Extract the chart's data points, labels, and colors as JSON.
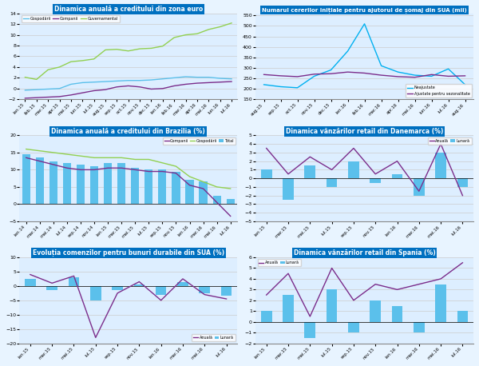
{
  "panel1": {
    "title": "Dinamica anuală a creditului din zona euro",
    "xlabels": [
      "ian.15",
      "feb.15",
      "mar.15",
      "apr.15",
      "mai.15",
      "iun.15",
      "iul.15",
      "aug.15",
      "sep.15",
      "oct.15",
      "nov.15",
      "dec.15",
      "ian.16",
      "feb.16",
      "mar.16",
      "apr.16",
      "mai.16",
      "iun.16",
      "iul.16"
    ],
    "gospodariii": [
      -0.3,
      -0.2,
      -0.1,
      0.0,
      0.8,
      1.1,
      1.2,
      1.3,
      1.4,
      1.5,
      1.5,
      1.6,
      1.8,
      2.0,
      2.2,
      2.1,
      2.1,
      1.9,
      1.8
    ],
    "companii": [
      -1.8,
      -1.7,
      -1.6,
      -1.5,
      -1.2,
      -0.8,
      -0.4,
      -0.2,
      0.3,
      0.5,
      0.3,
      -0.1,
      0.0,
      0.5,
      0.8,
      1.0,
      1.1,
      1.2,
      1.3
    ],
    "guvernamental": [
      2.1,
      1.7,
      3.5,
      4.0,
      5.0,
      5.2,
      5.5,
      7.2,
      7.3,
      7.0,
      7.4,
      7.5,
      7.9,
      9.5,
      10.0,
      10.2,
      11.0,
      11.5,
      12.2
    ],
    "ylim": [
      -2,
      14
    ],
    "yticks": [
      -2,
      0,
      2,
      4,
      6,
      8,
      10,
      12,
      14
    ]
  },
  "panel2": {
    "title": "Numarul cererilor inițiale pentru ajutorul de șomaj din SUA (mii)",
    "xlabels": [
      "aug.15",
      "sep.15",
      "oct.15",
      "nov.15",
      "dec.15",
      "ian.16",
      "feb.16",
      "mar.16",
      "apr.16",
      "mai.16",
      "iun.16",
      "iul.16",
      "aug.16"
    ],
    "neajustate": [
      220,
      210,
      205,
      260,
      290,
      380,
      510,
      310,
      280,
      265,
      260,
      295,
      220
    ],
    "ajustate": [
      268,
      262,
      258,
      270,
      272,
      280,
      275,
      265,
      258,
      255,
      268,
      260,
      262
    ],
    "ylim": [
      150,
      560
    ],
    "yticks": [
      150,
      200,
      250,
      300,
      350,
      400,
      450,
      500,
      550
    ]
  },
  "panel3": {
    "title": "Dinamica anuală a creditului din Brazilia (%)",
    "xlabels": [
      "ian.14",
      "mar.14",
      "mai.14",
      "iul.14",
      "sep.14",
      "nov.14",
      "ian.15",
      "mar.15",
      "mai.15",
      "iul.15",
      "sep.15",
      "nov.15",
      "ian.16",
      "mar.16",
      "mai.16",
      "iul.16"
    ],
    "total_bars": [
      14.5,
      13.5,
      12.5,
      12.0,
      11.5,
      11.0,
      12.0,
      12.0,
      10.5,
      10.0,
      10.0,
      9.5,
      7.0,
      6.5,
      2.5,
      1.5
    ],
    "companii": [
      13.5,
      12.5,
      11.5,
      10.5,
      10.0,
      10.0,
      10.5,
      10.5,
      10.0,
      9.5,
      9.5,
      9.0,
      5.5,
      4.5,
      0.5,
      -3.5
    ],
    "gospodariii": [
      16.0,
      15.5,
      15.0,
      14.5,
      14.0,
      13.5,
      13.5,
      13.5,
      13.0,
      13.0,
      12.0,
      11.0,
      8.0,
      6.5,
      5.0,
      4.5
    ],
    "ylim": [
      -5,
      20
    ],
    "yticks": [
      -5,
      0,
      5,
      10,
      15,
      20
    ]
  },
  "panel4": {
    "title": "Dinamica vânzărilor retail din Danemarca (%)",
    "xlabels": [
      "ian.15",
      "mar.15",
      "mai.15",
      "iul.15",
      "sep.15",
      "nov.15",
      "ian.16",
      "mar.16",
      "mai.16",
      "iul.16"
    ],
    "lunar_bars": [
      1.0,
      -2.5,
      1.5,
      -1.0,
      2.0,
      -0.5,
      0.5,
      -2.0,
      3.0,
      -1.0
    ],
    "anuala": [
      3.5,
      0.5,
      2.5,
      1.0,
      3.5,
      0.5,
      2.0,
      -1.5,
      4.0,
      -2.0
    ],
    "ylim": [
      -5,
      5
    ],
    "yticks": [
      -5,
      -4,
      -3,
      -2,
      -1,
      0,
      1,
      2,
      3,
      4,
      5
    ]
  },
  "panel5": {
    "title": "Evoluția comenzilor pentru bunuri durabile din SUA (%)",
    "xlabels": [
      "ian.15",
      "mar.15",
      "mai.15",
      "iul.15",
      "sep.15",
      "nov.15",
      "ian.16",
      "mar.16",
      "mai.16",
      "iul.16"
    ],
    "lunar_bars": [
      2.5,
      -1.5,
      3.0,
      -5.0,
      -1.5,
      0.5,
      -3.0,
      1.5,
      -2.5,
      -3.5
    ],
    "anuala": [
      4.0,
      1.0,
      3.5,
      -18.0,
      -2.5,
      1.5,
      -5.0,
      2.5,
      -3.0,
      -4.5
    ],
    "ylim": [
      -20,
      10
    ],
    "yticks": [
      -20,
      -15,
      -10,
      -5,
      0,
      5,
      10
    ]
  },
  "panel6": {
    "title": "Dinamica vânzărilor retail din Spania (%)",
    "xlabels": [
      "ian.15",
      "mar.15",
      "mai.15",
      "iul.15",
      "sep.15",
      "nov.15",
      "ian.16",
      "mar.16",
      "mai.16",
      "iul.16"
    ],
    "lunar_bars": [
      1.0,
      2.5,
      -1.5,
      3.0,
      -1.0,
      2.0,
      1.5,
      -1.0,
      3.5,
      1.0
    ],
    "anuala": [
      2.5,
      4.5,
      0.5,
      5.0,
      2.0,
      3.5,
      3.0,
      3.5,
      4.0,
      5.5
    ],
    "ylim": [
      -2,
      6
    ],
    "yticks": [
      -2,
      -1,
      0,
      1,
      2,
      3,
      4,
      5,
      6
    ]
  },
  "header_bg": "#0070C0",
  "header_text_color": "#FFFFFF",
  "bar_color": "#5BC0EB",
  "line_color_blue": "#5BC0EB",
  "line_color_purple": "#7B2D8B",
  "line_color_green": "#92D050",
  "line_color_cyan": "#00B0F0",
  "bg_color": "#DDEEFF",
  "grid_color": "#BBBBBB"
}
